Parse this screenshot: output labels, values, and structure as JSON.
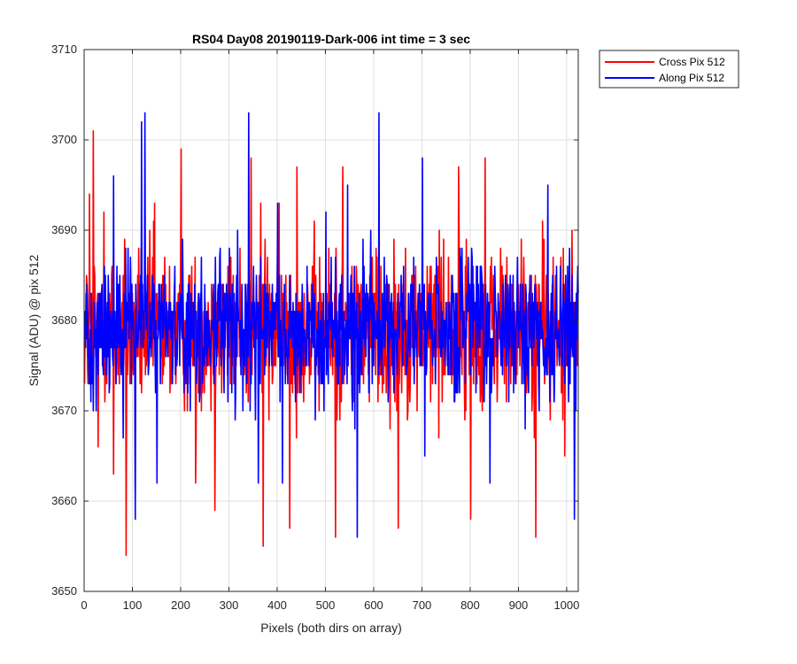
{
  "chart_data": {
    "type": "line",
    "title": "RS04 Day08 20190119-Dark-006 int time = 3 sec",
    "xlabel": "Pixels (both dirs on array)",
    "ylabel": "Signal (ADU) @ pix 512",
    "xlim": [
      0,
      1024
    ],
    "ylim": [
      3650,
      3710
    ],
    "xticks": [
      0,
      100,
      200,
      300,
      400,
      500,
      600,
      700,
      800,
      900,
      1000
    ],
    "yticks": [
      3650,
      3660,
      3670,
      3680,
      3690,
      3700,
      3710
    ],
    "grid": true,
    "legend_position": "outside-top-right",
    "series": [
      {
        "name": "Cross Pix 512",
        "color": "#ff0000",
        "mean": 3679,
        "spread": 9,
        "x_count": 1024,
        "extremes": [
          [
            10,
            3694
          ],
          [
            18,
            3701
          ],
          [
            28,
            3666
          ],
          [
            40,
            3692
          ],
          [
            60,
            3663
          ],
          [
            86,
            3654
          ],
          [
            105,
            3661
          ],
          [
            145,
            3693
          ],
          [
            200,
            3699
          ],
          [
            230,
            3662
          ],
          [
            270,
            3659
          ],
          [
            345,
            3698
          ],
          [
            365,
            3693
          ],
          [
            370,
            3655
          ],
          [
            425,
            3657
          ],
          [
            440,
            3697
          ],
          [
            520,
            3656
          ],
          [
            535,
            3697
          ],
          [
            650,
            3657
          ],
          [
            735,
            3690
          ],
          [
            775,
            3697
          ],
          [
            800,
            3658
          ],
          [
            830,
            3698
          ],
          [
            935,
            3656
          ],
          [
            995,
            3665
          ],
          [
            1010,
            3690
          ]
        ]
      },
      {
        "name": "Along Pix 512",
        "color": "#0000ff",
        "mean": 3679,
        "spread": 8,
        "x_count": 1024,
        "extremes": [
          [
            60,
            3696
          ],
          [
            80,
            3667
          ],
          [
            105,
            3658
          ],
          [
            118,
            3702
          ],
          [
            125,
            3703
          ],
          [
            150,
            3662
          ],
          [
            300,
            3688
          ],
          [
            340,
            3703
          ],
          [
            360,
            3662
          ],
          [
            400,
            3693
          ],
          [
            410,
            3662
          ],
          [
            500,
            3692
          ],
          [
            545,
            3695
          ],
          [
            565,
            3656
          ],
          [
            610,
            3703
          ],
          [
            700,
            3698
          ],
          [
            705,
            3665
          ],
          [
            840,
            3662
          ],
          [
            960,
            3695
          ],
          [
            1015,
            3658
          ]
        ]
      }
    ]
  }
}
